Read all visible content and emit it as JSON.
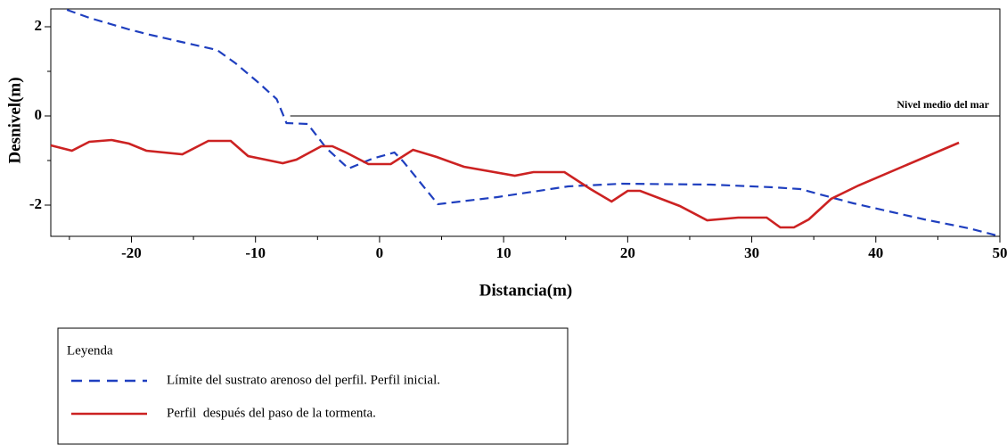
{
  "chart_data": {
    "type": "line",
    "x_label": "Distancia(m)",
    "y_label": "Desnivel(m)",
    "xlim": [
      -26.5,
      50
    ],
    "ylim": [
      -2.7,
      2.4
    ],
    "xticks": [
      -20,
      -10,
      0,
      10,
      20,
      30,
      40,
      50
    ],
    "xminor": [
      -25,
      -15,
      -5,
      5,
      15,
      25,
      35,
      45
    ],
    "yticks": [
      -2,
      0,
      2
    ],
    "yminor": [
      -1,
      1
    ],
    "sea_level": {
      "value": 0,
      "x_start": -7.2,
      "label": "Nivel medio del mar"
    },
    "legend_title": "Leyenda",
    "series": [
      {
        "name": "Límite del sustrato arenoso del perfil. Perfil inicial.",
        "color": "#1f3fbf",
        "style": "dashed",
        "x": [
          -25.2,
          -23.4,
          -20.2,
          -18.8,
          -16.3,
          -13.1,
          -11.6,
          -9.9,
          -8.3,
          -7.5,
          -5.8,
          -4.3,
          -2.5,
          -0.6,
          1.2,
          1.9,
          4.7,
          9.5,
          15.2,
          19.5,
          26.7,
          31.7,
          33.9,
          38.2,
          43.9,
          47.5,
          50
        ],
        "values": [
          2.38,
          2.2,
          1.94,
          1.84,
          1.68,
          1.48,
          1.18,
          0.78,
          0.38,
          -0.16,
          -0.18,
          -0.72,
          -1.18,
          -0.96,
          -0.82,
          -1.02,
          -1.98,
          -1.82,
          -1.58,
          -1.52,
          -1.54,
          -1.6,
          -1.64,
          -1.96,
          -2.32,
          -2.52,
          -2.7
        ]
      },
      {
        "name": "Perfil  después del paso de la tormenta.",
        "color": "#cc2222",
        "style": "solid",
        "x": [
          -26.5,
          -24.8,
          -23.4,
          -21.6,
          -20.2,
          -18.8,
          -15.9,
          -13.8,
          -12,
          -10.6,
          -9.2,
          -7.8,
          -6.7,
          -4.7,
          -3.8,
          -2.7,
          -0.9,
          0.9,
          2.7,
          4.6,
          6.8,
          10.9,
          12.4,
          14.9,
          17.0,
          18.7,
          20,
          21,
          24.2,
          26.4,
          28.9,
          31.2,
          32.3,
          33.4,
          34.6,
          36.4,
          38.6,
          46.7
        ],
        "values": [
          -0.66,
          -0.78,
          -0.58,
          -0.54,
          -0.62,
          -0.78,
          -0.86,
          -0.56,
          -0.56,
          -0.9,
          -0.98,
          -1.06,
          -0.98,
          -0.68,
          -0.68,
          -0.82,
          -1.08,
          -1.08,
          -0.76,
          -0.92,
          -1.14,
          -1.34,
          -1.26,
          -1.26,
          -1.64,
          -1.92,
          -1.68,
          -1.68,
          -2.02,
          -2.34,
          -2.28,
          -2.28,
          -2.5,
          -2.5,
          -2.32,
          -1.86,
          -1.56,
          -0.6
        ]
      }
    ]
  }
}
